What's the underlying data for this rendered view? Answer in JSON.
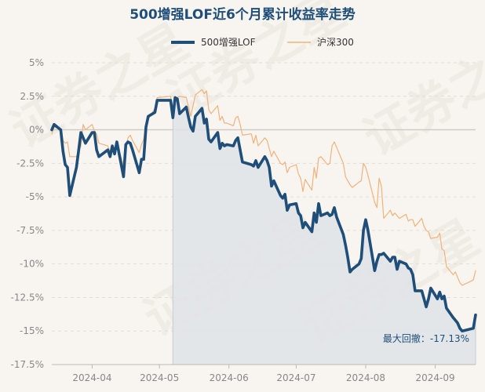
{
  "chart_data": {
    "type": "line",
    "title": "500增强LOF近6个月累计收益率走势",
    "xlabel": "",
    "ylabel": "",
    "x_ticks": [
      "2024-04",
      "2024-05",
      "2024-06",
      "2024-07",
      "2024-08",
      "2024-09"
    ],
    "y_ticks": [
      "5%",
      "2.5%",
      "0%",
      "-2.5%",
      "-5%",
      "-7.5%",
      "-10%",
      "-12.5%",
      "-15%",
      "-17.5%"
    ],
    "ylim": [
      -17.5,
      5
    ],
    "x_range": [
      "2024-03-14",
      "2024-09-19"
    ],
    "grid": true,
    "legend_position": "top-center",
    "max_drawdown_label": "最大回撤：-17.13%",
    "drawdown_start": "2024-05-07",
    "watermark": "证券之星",
    "series": [
      {
        "name": "500增强LOF",
        "color": "#1f4e79",
        "points": [
          [
            "2024-03-14",
            0.0
          ],
          [
            "2024-03-15",
            0.4
          ],
          [
            "2024-03-18",
            0.0
          ],
          [
            "2024-03-19",
            -1.6
          ],
          [
            "2024-03-20",
            -2.6
          ],
          [
            "2024-03-21",
            -2.8
          ],
          [
            "2024-03-22",
            -4.9
          ],
          [
            "2024-03-25",
            -2.8
          ],
          [
            "2024-03-26",
            -1.5
          ],
          [
            "2024-03-27",
            -0.2
          ],
          [
            "2024-03-28",
            -0.6
          ],
          [
            "2024-03-29",
            -1.0
          ],
          [
            "2024-04-01",
            -0.2
          ],
          [
            "2024-04-02",
            -0.2
          ],
          [
            "2024-04-03",
            -1.5
          ],
          [
            "2024-04-04",
            -2.0
          ],
          [
            "2024-04-08",
            -1.5
          ],
          [
            "2024-04-09",
            -2.0
          ],
          [
            "2024-04-10",
            -1.2
          ],
          [
            "2024-04-11",
            -1.8
          ],
          [
            "2024-04-12",
            -0.9
          ],
          [
            "2024-04-15",
            -3.5
          ],
          [
            "2024-04-16",
            -1.1
          ],
          [
            "2024-04-17",
            -0.9
          ],
          [
            "2024-04-18",
            -1.0
          ],
          [
            "2024-04-19",
            -1.5
          ],
          [
            "2024-04-22",
            -3.2
          ],
          [
            "2024-04-23",
            -2.2
          ],
          [
            "2024-04-24",
            -2.2
          ],
          [
            "2024-04-25",
            0.2
          ],
          [
            "2024-04-26",
            1.0
          ],
          [
            "2024-04-29",
            1.3
          ],
          [
            "2024-04-30",
            2.2
          ],
          [
            "2024-05-06",
            2.2
          ],
          [
            "2024-05-07",
            0.9
          ],
          [
            "2024-05-08",
            2.4
          ],
          [
            "2024-05-09",
            2.3
          ],
          [
            "2024-05-10",
            1.2
          ],
          [
            "2024-05-13",
            1.7
          ],
          [
            "2024-05-14",
            0.9
          ],
          [
            "2024-05-15",
            0.2
          ],
          [
            "2024-05-16",
            -0.1
          ],
          [
            "2024-05-17",
            1.0
          ],
          [
            "2024-05-20",
            1.6
          ],
          [
            "2024-05-21",
            0.5
          ],
          [
            "2024-05-22",
            0.8
          ],
          [
            "2024-05-23",
            -0.7
          ],
          [
            "2024-05-24",
            -0.9
          ],
          [
            "2024-05-27",
            -0.2
          ],
          [
            "2024-05-28",
            -1.4
          ],
          [
            "2024-05-29",
            -1.0
          ],
          [
            "2024-05-30",
            -1.2
          ],
          [
            "2024-05-31",
            -1.1
          ],
          [
            "2024-06-03",
            -1.2
          ],
          [
            "2024-06-04",
            -0.8
          ],
          [
            "2024-06-05",
            -0.6
          ],
          [
            "2024-06-06",
            -1.5
          ],
          [
            "2024-06-07",
            -2.4
          ],
          [
            "2024-06-11",
            -2.6
          ],
          [
            "2024-06-12",
            -2.7
          ],
          [
            "2024-06-13",
            -2.3
          ],
          [
            "2024-06-14",
            -2.8
          ],
          [
            "2024-06-17",
            -2.0
          ],
          [
            "2024-06-18",
            -2.3
          ],
          [
            "2024-06-19",
            -2.8
          ],
          [
            "2024-06-20",
            -4.2
          ],
          [
            "2024-06-21",
            -3.8
          ],
          [
            "2024-06-24",
            -4.9
          ],
          [
            "2024-06-25",
            -5.1
          ],
          [
            "2024-06-26",
            -4.8
          ],
          [
            "2024-06-27",
            -6.0
          ],
          [
            "2024-06-28",
            -5.6
          ],
          [
            "2024-07-01",
            -5.5
          ],
          [
            "2024-07-02",
            -6.2
          ],
          [
            "2024-07-03",
            -6.4
          ],
          [
            "2024-07-04",
            -7.3
          ],
          [
            "2024-07-05",
            -6.9
          ],
          [
            "2024-07-08",
            -7.6
          ],
          [
            "2024-07-09",
            -6.2
          ],
          [
            "2024-07-10",
            -6.9
          ],
          [
            "2024-07-11",
            -5.5
          ],
          [
            "2024-07-12",
            -6.4
          ],
          [
            "2024-07-15",
            -6.2
          ],
          [
            "2024-07-16",
            -6.4
          ],
          [
            "2024-07-17",
            -6.3
          ],
          [
            "2024-07-18",
            -5.8
          ],
          [
            "2024-07-19",
            -6.5
          ],
          [
            "2024-07-22",
            -7.8
          ],
          [
            "2024-07-23",
            -8.6
          ],
          [
            "2024-07-24",
            -9.5
          ],
          [
            "2024-07-25",
            -10.6
          ],
          [
            "2024-07-26",
            -10.4
          ],
          [
            "2024-07-29",
            -10.0
          ],
          [
            "2024-07-30",
            -9.6
          ],
          [
            "2024-07-31",
            -7.5
          ],
          [
            "2024-08-01",
            -6.7
          ],
          [
            "2024-08-02",
            -7.5
          ],
          [
            "2024-08-05",
            -10.5
          ],
          [
            "2024-08-06",
            -9.8
          ],
          [
            "2024-08-07",
            -9.3
          ],
          [
            "2024-08-08",
            -9.3
          ],
          [
            "2024-08-09",
            -9.2
          ],
          [
            "2024-08-12",
            -9.8
          ],
          [
            "2024-08-13",
            -9.5
          ],
          [
            "2024-08-14",
            -9.5
          ],
          [
            "2024-08-15",
            -10.4
          ],
          [
            "2024-08-16",
            -9.8
          ],
          [
            "2024-08-19",
            -10.0
          ],
          [
            "2024-08-20",
            -10.3
          ],
          [
            "2024-08-21",
            -10.4
          ],
          [
            "2024-08-22",
            -10.8
          ],
          [
            "2024-08-23",
            -12.0
          ],
          [
            "2024-08-26",
            -12.0
          ],
          [
            "2024-08-27",
            -12.6
          ],
          [
            "2024-08-28",
            -13.2
          ],
          [
            "2024-08-29",
            -12.6
          ],
          [
            "2024-08-30",
            -11.8
          ],
          [
            "2024-09-02",
            -12.6
          ],
          [
            "2024-09-03",
            -12.1
          ],
          [
            "2024-09-04",
            -12.6
          ],
          [
            "2024-09-05",
            -12.4
          ],
          [
            "2024-09-06",
            -13.3
          ],
          [
            "2024-09-09",
            -14.0
          ],
          [
            "2024-09-10",
            -14.2
          ],
          [
            "2024-09-11",
            -14.4
          ],
          [
            "2024-09-12",
            -14.8
          ],
          [
            "2024-09-13",
            -15.0
          ],
          [
            "2024-09-18",
            -14.8
          ],
          [
            "2024-09-19",
            -13.8
          ]
        ]
      },
      {
        "name": "沪深300",
        "color": "#f2b27a",
        "points": [
          [
            "2024-03-14",
            -0.3
          ],
          [
            "2024-03-15",
            0.2
          ],
          [
            "2024-03-18",
            0.1
          ],
          [
            "2024-03-19",
            -0.8
          ],
          [
            "2024-03-20",
            -1.0
          ],
          [
            "2024-03-21",
            -0.9
          ],
          [
            "2024-03-22",
            -2.0
          ],
          [
            "2024-03-25",
            -2.0
          ],
          [
            "2024-03-26",
            -1.6
          ],
          [
            "2024-03-27",
            -1.2
          ],
          [
            "2024-03-28",
            0.4
          ],
          [
            "2024-03-29",
            0.0
          ],
          [
            "2024-04-01",
            0.4
          ],
          [
            "2024-04-02",
            -0.1
          ],
          [
            "2024-04-03",
            -0.3
          ],
          [
            "2024-04-04",
            -1.0
          ],
          [
            "2024-04-08",
            -1.2
          ],
          [
            "2024-04-09",
            -1.7
          ],
          [
            "2024-04-10",
            -1.2
          ],
          [
            "2024-04-11",
            -1.5
          ],
          [
            "2024-04-12",
            -1.0
          ],
          [
            "2024-04-15",
            -2.7
          ],
          [
            "2024-04-16",
            -1.4
          ],
          [
            "2024-04-17",
            -0.6
          ],
          [
            "2024-04-18",
            -0.4
          ],
          [
            "2024-04-19",
            -0.8
          ],
          [
            "2024-04-22",
            -1.7
          ],
          [
            "2024-04-23",
            -1.1
          ],
          [
            "2024-04-24",
            -0.7
          ],
          [
            "2024-04-25",
            0.5
          ],
          [
            "2024-04-26",
            0.8
          ],
          [
            "2024-04-29",
            1.6
          ],
          [
            "2024-04-30",
            2.4
          ],
          [
            "2024-05-06",
            2.5
          ],
          [
            "2024-05-07",
            1.5
          ],
          [
            "2024-05-08",
            2.5
          ],
          [
            "2024-05-09",
            2.4
          ],
          [
            "2024-05-10",
            2.5
          ],
          [
            "2024-05-13",
            2.4
          ],
          [
            "2024-05-14",
            1.7
          ],
          [
            "2024-05-15",
            1.0
          ],
          [
            "2024-05-16",
            1.8
          ],
          [
            "2024-05-17",
            2.6
          ],
          [
            "2024-05-20",
            3.0
          ],
          [
            "2024-05-21",
            2.7
          ],
          [
            "2024-05-22",
            2.9
          ],
          [
            "2024-05-23",
            1.5
          ],
          [
            "2024-05-24",
            1.2
          ],
          [
            "2024-05-27",
            1.8
          ],
          [
            "2024-05-28",
            0.7
          ],
          [
            "2024-05-29",
            1.0
          ],
          [
            "2024-05-30",
            0.5
          ],
          [
            "2024-05-31",
            0.5
          ],
          [
            "2024-06-03",
            0.3
          ],
          [
            "2024-06-04",
            0.9
          ],
          [
            "2024-06-05",
            1.0
          ],
          [
            "2024-06-06",
            0.4
          ],
          [
            "2024-06-07",
            -0.4
          ],
          [
            "2024-06-11",
            -0.3
          ],
          [
            "2024-06-12",
            -1.0
          ],
          [
            "2024-06-13",
            -0.4
          ],
          [
            "2024-06-14",
            -1.2
          ],
          [
            "2024-06-17",
            -0.6
          ],
          [
            "2024-06-18",
            -0.8
          ],
          [
            "2024-06-19",
            -1.4
          ],
          [
            "2024-06-20",
            -2.0
          ],
          [
            "2024-06-21",
            -1.6
          ],
          [
            "2024-06-24",
            -2.5
          ],
          [
            "2024-06-25",
            -2.6
          ],
          [
            "2024-06-26",
            -2.4
          ],
          [
            "2024-06-27",
            -3.2
          ],
          [
            "2024-06-28",
            -2.8
          ],
          [
            "2024-07-01",
            -2.6
          ],
          [
            "2024-07-02",
            -3.3
          ],
          [
            "2024-07-03",
            -3.6
          ],
          [
            "2024-07-04",
            -4.6
          ],
          [
            "2024-07-05",
            -3.7
          ],
          [
            "2024-07-08",
            -4.5
          ],
          [
            "2024-07-09",
            -2.8
          ],
          [
            "2024-07-10",
            -3.6
          ],
          [
            "2024-07-11",
            -2.1
          ],
          [
            "2024-07-12",
            -2.0
          ],
          [
            "2024-07-15",
            -2.6
          ],
          [
            "2024-07-16",
            -2.5
          ],
          [
            "2024-07-17",
            -1.2
          ],
          [
            "2024-07-18",
            -0.9
          ],
          [
            "2024-07-19",
            -1.3
          ],
          [
            "2024-07-22",
            -2.5
          ],
          [
            "2024-07-23",
            -3.5
          ],
          [
            "2024-07-24",
            -3.8
          ],
          [
            "2024-07-25",
            -4.1
          ],
          [
            "2024-07-26",
            -4.3
          ],
          [
            "2024-07-29",
            -3.9
          ],
          [
            "2024-07-30",
            -3.8
          ],
          [
            "2024-07-31",
            -2.5
          ],
          [
            "2024-08-01",
            -2.8
          ],
          [
            "2024-08-02",
            -3.4
          ],
          [
            "2024-08-05",
            -5.4
          ],
          [
            "2024-08-06",
            -5.8
          ],
          [
            "2024-08-07",
            -3.6
          ],
          [
            "2024-08-08",
            -4.2
          ],
          [
            "2024-08-09",
            -6.6
          ],
          [
            "2024-08-12",
            -6.0
          ],
          [
            "2024-08-13",
            -6.4
          ],
          [
            "2024-08-14",
            -6.2
          ],
          [
            "2024-08-15",
            -6.4
          ],
          [
            "2024-08-16",
            -6.6
          ],
          [
            "2024-08-19",
            -6.3
          ],
          [
            "2024-08-20",
            -6.8
          ],
          [
            "2024-08-21",
            -6.7
          ],
          [
            "2024-08-22",
            -6.7
          ],
          [
            "2024-08-23",
            -7.2
          ],
          [
            "2024-08-26",
            -6.6
          ],
          [
            "2024-08-27",
            -7.2
          ],
          [
            "2024-08-28",
            -7.5
          ],
          [
            "2024-08-29",
            -7.6
          ],
          [
            "2024-08-30",
            -8.1
          ],
          [
            "2024-09-02",
            -8.0
          ],
          [
            "2024-09-03",
            -7.7
          ],
          [
            "2024-09-04",
            -8.9
          ],
          [
            "2024-09-05",
            -9.0
          ],
          [
            "2024-09-06",
            -10.2
          ],
          [
            "2024-09-09",
            -10.8
          ],
          [
            "2024-09-10",
            -10.6
          ],
          [
            "2024-09-11",
            -11.0
          ],
          [
            "2024-09-12",
            -11.4
          ],
          [
            "2024-09-13",
            -11.6
          ],
          [
            "2024-09-18",
            -11.2
          ],
          [
            "2024-09-19",
            -10.5
          ]
        ]
      }
    ]
  }
}
